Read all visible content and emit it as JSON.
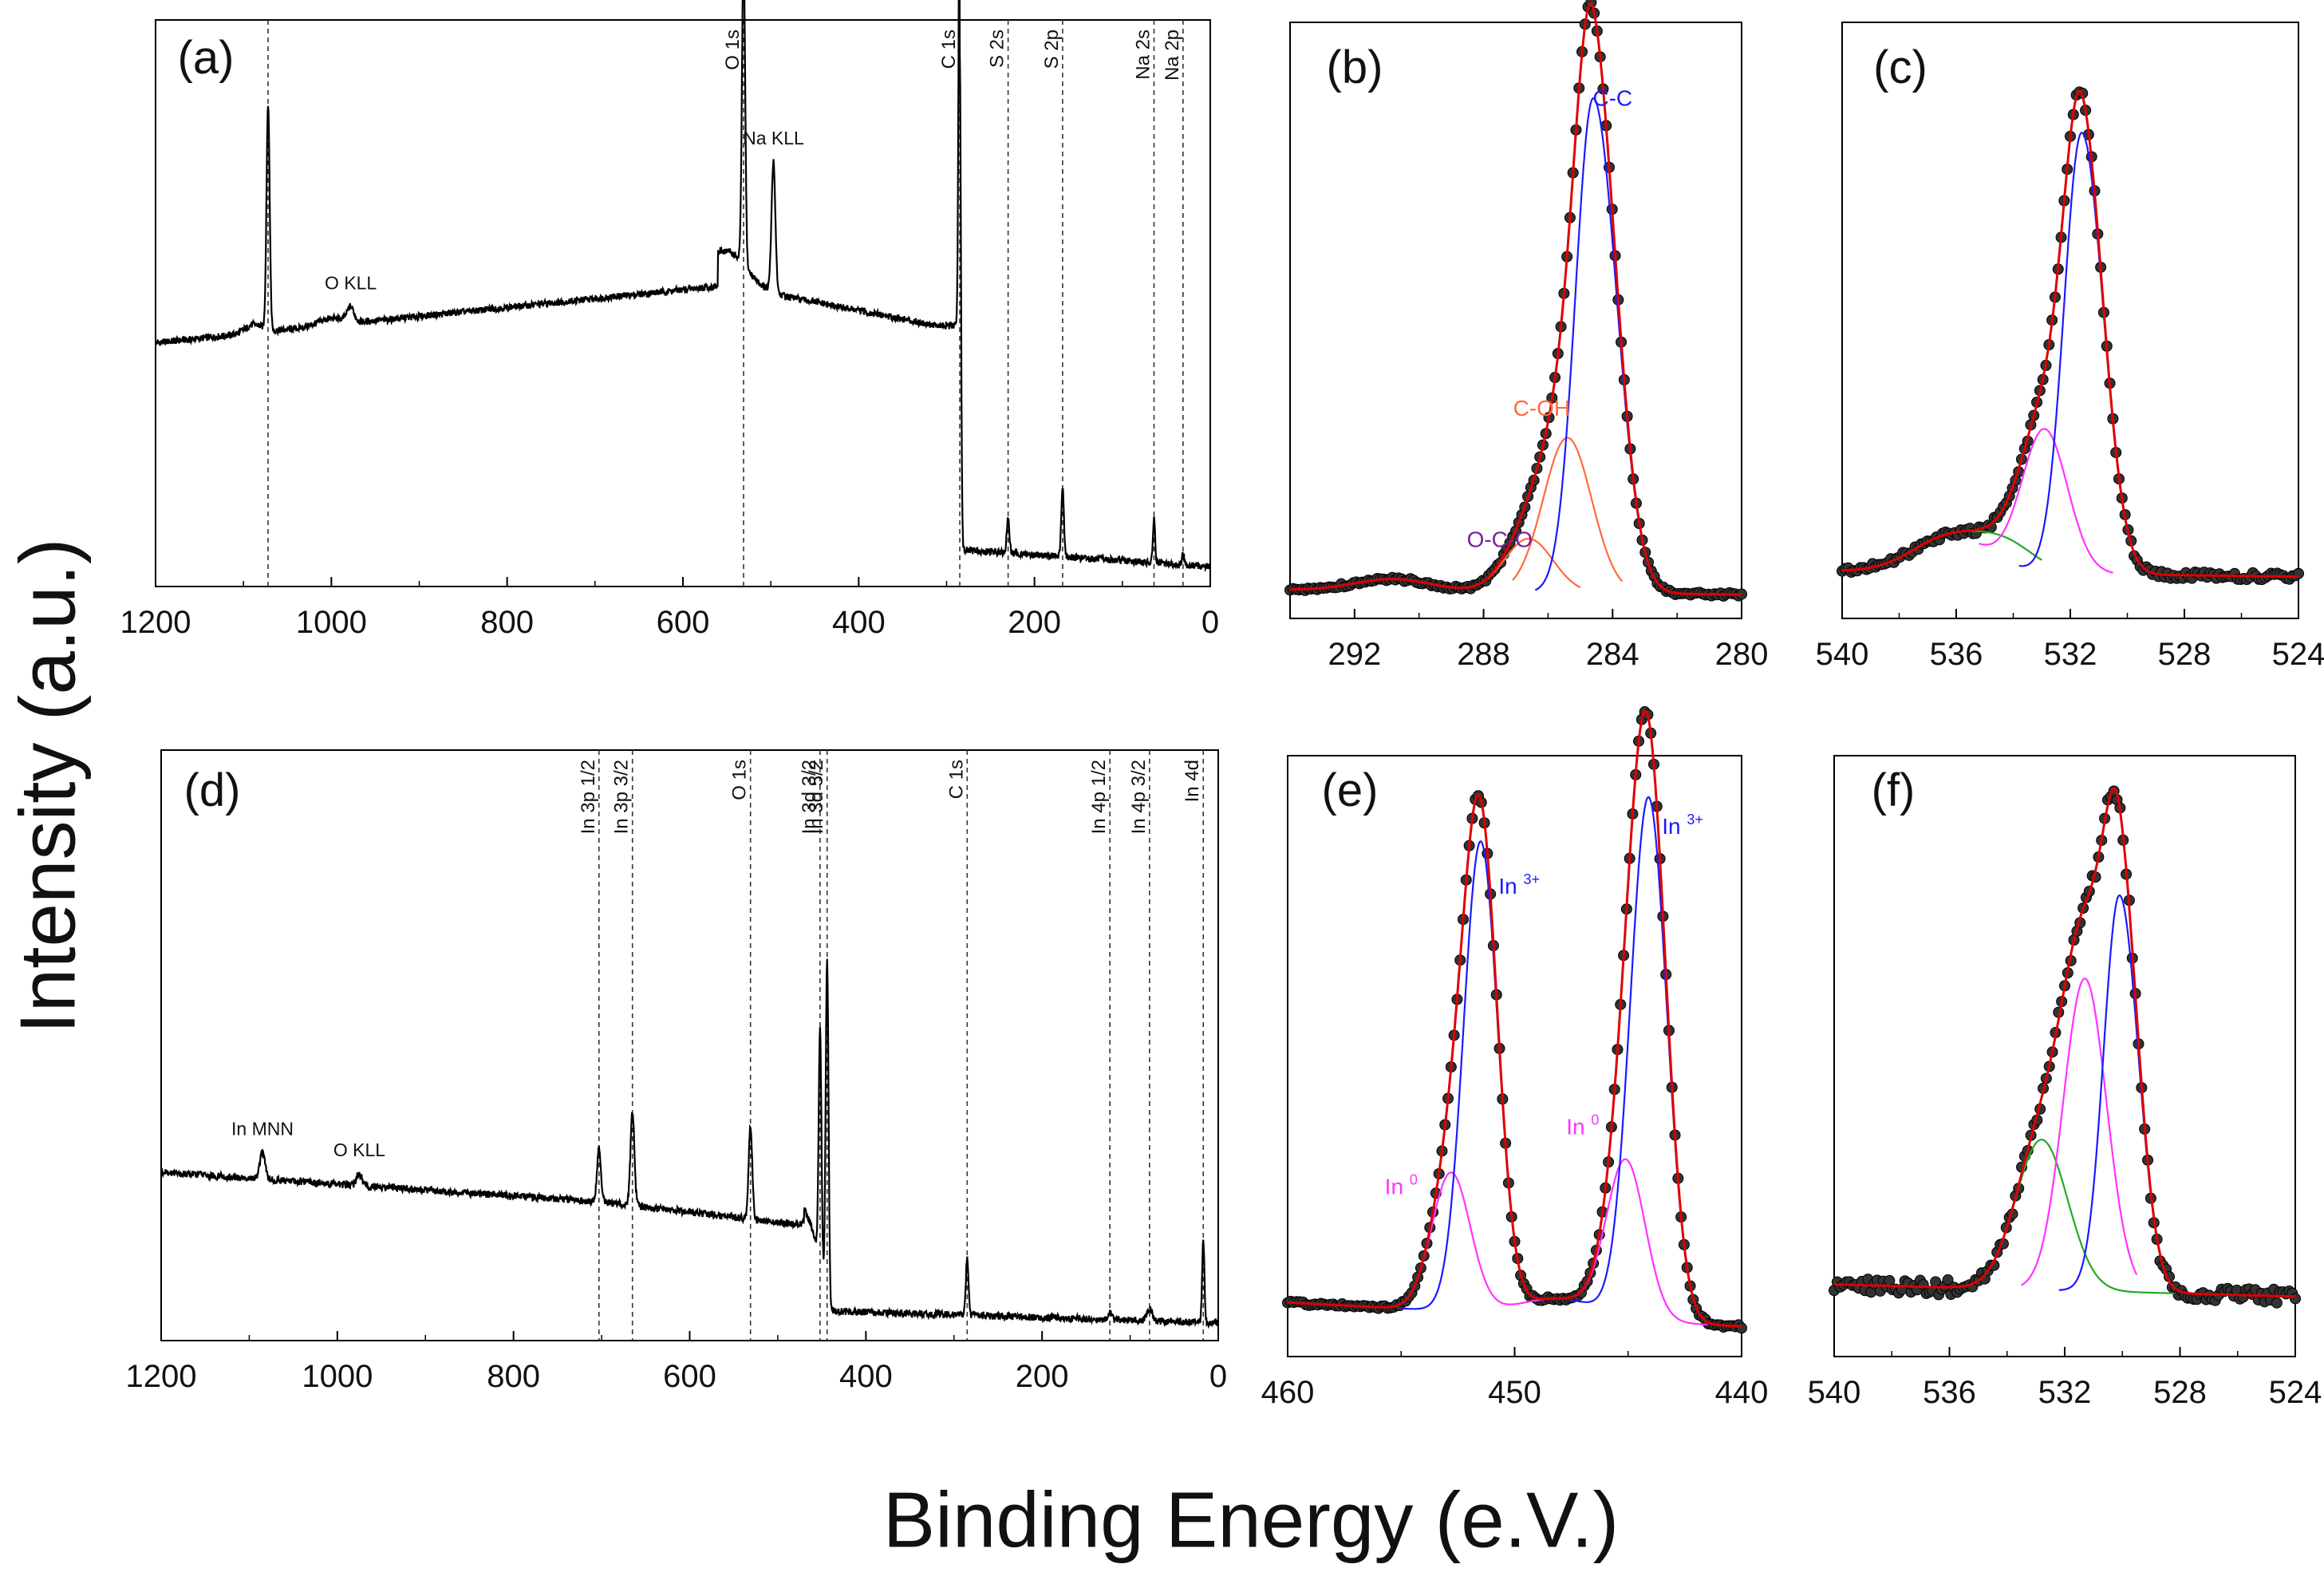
{
  "axis_titles": {
    "y": "Intensity (a.u.)",
    "x": "Binding Energy (e.V.)"
  },
  "chart_data": [
    {
      "panel": "(a)",
      "type": "line",
      "xlim": [
        1200,
        0
      ],
      "xlabel": "",
      "ylabel": "",
      "xticks": [
        1200,
        1000,
        800,
        600,
        400,
        200,
        0
      ],
      "series": [
        {
          "color": "#000000",
          "values": []
        }
      ],
      "reference_lines": [
        {
          "x": 1072,
          "label": ""
        },
        {
          "x": 531,
          "label": "O 1s"
        },
        {
          "x": 285,
          "label": "C 1s"
        },
        {
          "x": 230,
          "label": "S 2s"
        },
        {
          "x": 168,
          "label": "S 2p"
        },
        {
          "x": 64,
          "label": "Na 2s"
        },
        {
          "x": 31,
          "label": "Na 2p"
        }
      ],
      "annotations": [
        {
          "x": 978,
          "text": "O KLL"
        },
        {
          "x": 497,
          "text": "Na KLL"
        }
      ]
    },
    {
      "panel": "(b)",
      "type": "line",
      "xlim": [
        294,
        280
      ],
      "xlabel": "",
      "ylabel": "",
      "xticks": [
        292,
        288,
        284,
        280
      ],
      "series": [
        {
          "name": "C-C",
          "color": "#1a1aff"
        },
        {
          "name": "C-OH",
          "color": "#ff6a3d"
        },
        {
          "name": "O-C-O",
          "color": "#7a1fa2"
        },
        {
          "color": "#e00000"
        }
      ]
    },
    {
      "panel": "(c)",
      "type": "line",
      "xlim": [
        540,
        524
      ],
      "xlabel": "",
      "ylabel": "",
      "xticks": [
        540,
        536,
        532,
        528,
        524
      ],
      "series": [
        {
          "color": "#1a1aff"
        },
        {
          "color": "#ff33ff"
        },
        {
          "color": "#22aa22"
        },
        {
          "color": "#e00000"
        }
      ]
    },
    {
      "panel": "(d)",
      "type": "line",
      "xlim": [
        1200,
        0
      ],
      "xlabel": "",
      "ylabel": "",
      "xticks": [
        1200,
        1000,
        800,
        600,
        400,
        200,
        0
      ],
      "series": [
        {
          "color": "#000000",
          "values": []
        }
      ],
      "reference_lines": [
        {
          "x": 703,
          "label": "In 3p 1/2"
        },
        {
          "x": 665,
          "label": "In 3p 3/2"
        },
        {
          "x": 531,
          "label": "O 1s"
        },
        {
          "x": 452,
          "label": "In 3d 3/2"
        },
        {
          "x": 444,
          "label": "In 3d 5/2"
        },
        {
          "x": 285,
          "label": "C 1s"
        },
        {
          "x": 123,
          "label": "In 4p 1/2"
        },
        {
          "x": 78,
          "label": "In 4p 3/2"
        },
        {
          "x": 17,
          "label": "In 4d"
        }
      ],
      "annotations": [
        {
          "x": 1085,
          "text": "In MNN"
        },
        {
          "x": 975,
          "text": "O KLL"
        }
      ]
    },
    {
      "panel": "(e)",
      "type": "line",
      "xlim": [
        460,
        440
      ],
      "xlabel": "",
      "ylabel": "",
      "xticks": [
        460,
        450,
        440
      ],
      "annotations": [
        {
          "x": 451.5,
          "text": "In",
          "sup": "3+"
        },
        {
          "x": 444,
          "text": "In",
          "sup": "3+"
        },
        {
          "x": 452.8,
          "text": "In",
          "sup": "0"
        },
        {
          "x": 445.8,
          "text": "In",
          "sup": "0"
        }
      ],
      "series": [
        {
          "color": "#1a1aff"
        },
        {
          "color": "#ff33ff"
        },
        {
          "color": "#e00000"
        }
      ]
    },
    {
      "panel": "(f)",
      "type": "line",
      "xlim": [
        540,
        524
      ],
      "xlabel": "",
      "ylabel": "",
      "xticks": [
        540,
        536,
        532,
        528,
        524
      ],
      "series": [
        {
          "color": "#1a1aff"
        },
        {
          "color": "#ff33ff"
        },
        {
          "color": "#22aa22"
        },
        {
          "color": "#e00000"
        }
      ]
    }
  ]
}
